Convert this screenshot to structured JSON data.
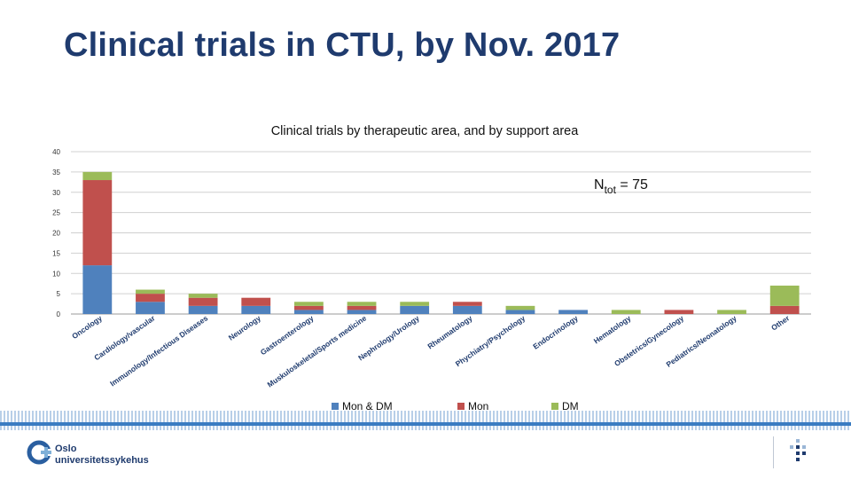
{
  "slide": {
    "title": "Clinical trials in CTU, by Nov. 2017"
  },
  "logo": {
    "line1": "Oslo",
    "line2": "universitetssykehus",
    "icon": "oslo-university-hospital-logo-icon"
  },
  "colors": {
    "mon_dm": "#4f81bd",
    "mon": "#c0504d",
    "dm": "#9bbb59",
    "title": "#1f3b6e",
    "stripe": "#3a7cc2"
  },
  "chart_data": {
    "type": "bar",
    "stacked": true,
    "title": "Clinical trials by therapeutic area, and by support area",
    "annotation": {
      "text": "N",
      "subscript": "tot",
      "suffix": " = 75"
    },
    "ylim": [
      0,
      40
    ],
    "yticks": [
      0,
      5,
      10,
      15,
      20,
      25,
      30,
      35,
      40
    ],
    "grid": true,
    "legend_position": "bottom",
    "categories": [
      "Oncology",
      "Cardiology/vascular",
      "Immunology/Infectious Diseases",
      "Neurology",
      "Gastroenterology",
      "Muskuloskeletal/Sports medicine",
      "Nephrology/Urology",
      "Rheumatology",
      "Phychiatry/Psychology",
      "Endocrinology",
      "Hematology",
      "Obstetrics/Gynecology",
      "Pediatrics/Neonatology",
      "Other"
    ],
    "series": [
      {
        "name": "Mon & DM",
        "values": [
          12,
          3,
          2,
          2,
          1,
          1,
          2,
          2,
          1,
          1,
          0,
          0,
          0,
          0
        ]
      },
      {
        "name": "Mon",
        "values": [
          21,
          2,
          2,
          2,
          1,
          1,
          0,
          1,
          0,
          0,
          0,
          1,
          0,
          2
        ]
      },
      {
        "name": "DM",
        "values": [
          2,
          1,
          1,
          0,
          1,
          1,
          1,
          0,
          1,
          0,
          1,
          0,
          1,
          5
        ]
      }
    ]
  }
}
